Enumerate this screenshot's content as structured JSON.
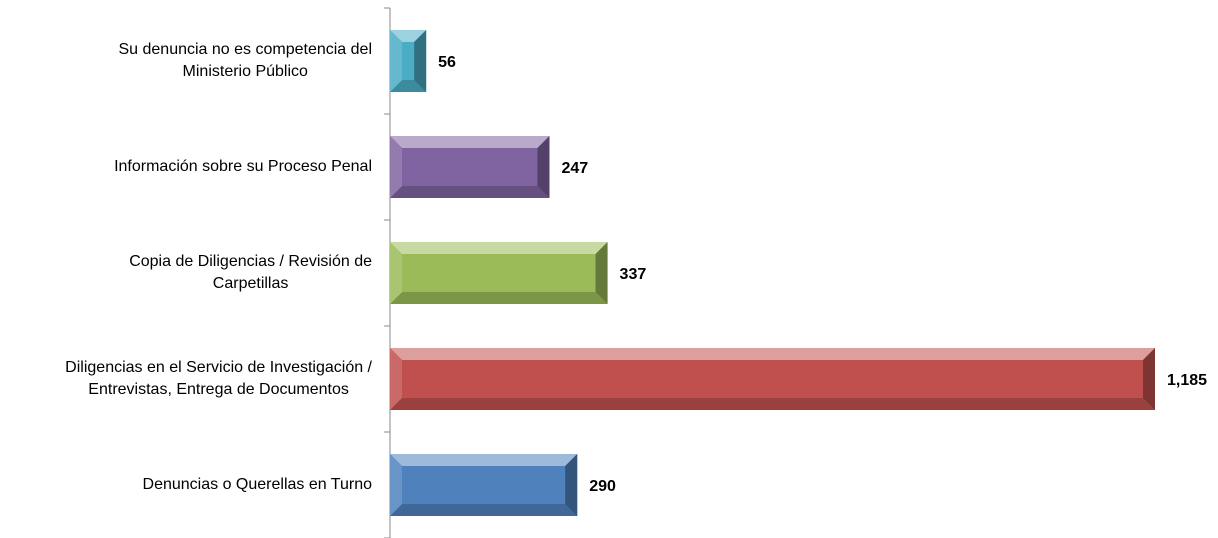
{
  "chart_data": {
    "type": "bar",
    "orientation": "horizontal",
    "categories": [
      "Su denuncia no es competencia del\nMinisterio Público",
      "Información sobre su Proceso Penal",
      "Copia de Diligencias / Revisión de\nCarpetillas",
      "Diligencias en el Servicio de Investigación /\nEntrevistas, Entrega de Documentos",
      "Denuncias o Querellas en Turno"
    ],
    "values": [
      56,
      247,
      337,
      1185,
      290
    ],
    "value_labels": [
      "56",
      "247",
      "337",
      "1,185",
      "290"
    ],
    "colors": [
      "#4bacc6",
      "#8064a2",
      "#9bbb59",
      "#c0504d",
      "#4f81bd"
    ]
  }
}
